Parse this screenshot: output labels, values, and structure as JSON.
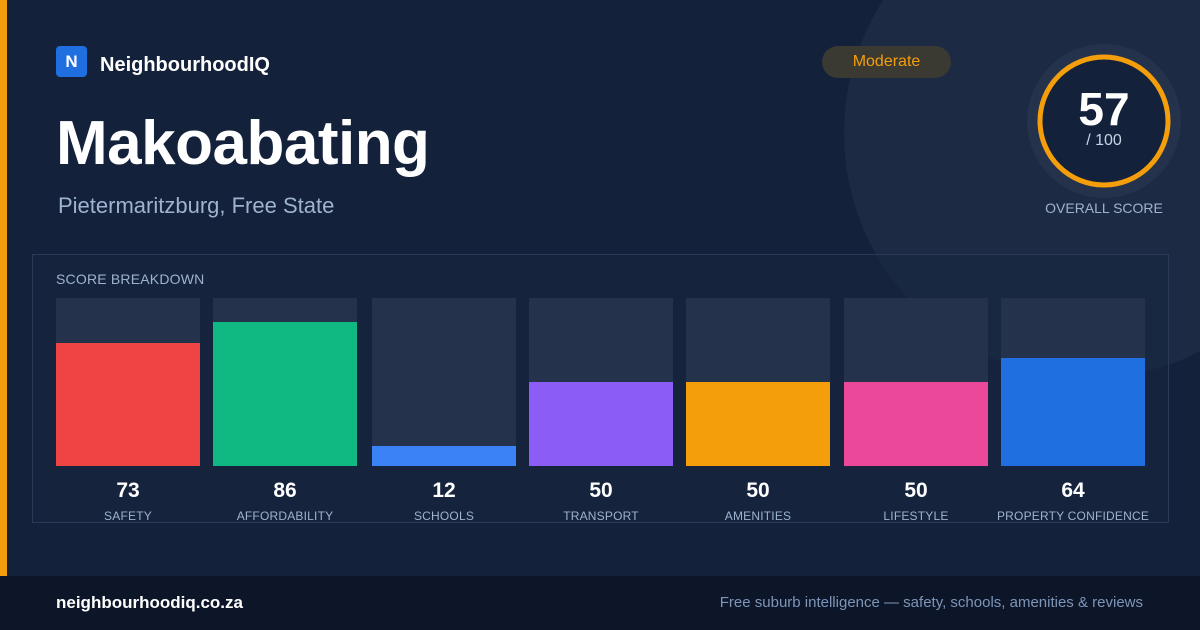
{
  "brand": {
    "logo_letter": "N",
    "name": "NeighbourhoodIQ"
  },
  "suburb": {
    "name": "Makoabating",
    "location": "Pietermaritzburg, Free State"
  },
  "status": {
    "label": "Moderate",
    "color": "#f59e0b"
  },
  "overall": {
    "score": "57",
    "max": "/ 100",
    "fraction": 0.57,
    "caption": "OVERALL SCORE"
  },
  "breakdown": {
    "title": "SCORE BREAKDOWN",
    "items": [
      {
        "value": "73",
        "score": 73,
        "label": "SAFETY",
        "color": "#ef4444"
      },
      {
        "value": "86",
        "score": 86,
        "label": "AFFORDABILITY",
        "color": "#10b981"
      },
      {
        "value": "12",
        "score": 12,
        "label": "SCHOOLS",
        "color": "#3b82f6"
      },
      {
        "value": "50",
        "score": 50,
        "label": "TRANSPORT",
        "color": "#8b5cf6"
      },
      {
        "value": "50",
        "score": 50,
        "label": "AMENITIES",
        "color": "#f59e0b"
      },
      {
        "value": "50",
        "score": 50,
        "label": "LIFESTYLE",
        "color": "#ec4899"
      },
      {
        "value": "64",
        "score": 64,
        "label": "PROPERTY CONFIDENCE",
        "color": "#1f6fe0"
      }
    ]
  },
  "footer": {
    "domain": "neighbourhoodiq.co.za",
    "tagline": "Free suburb intelligence — safety, schools, amenities & reviews"
  }
}
